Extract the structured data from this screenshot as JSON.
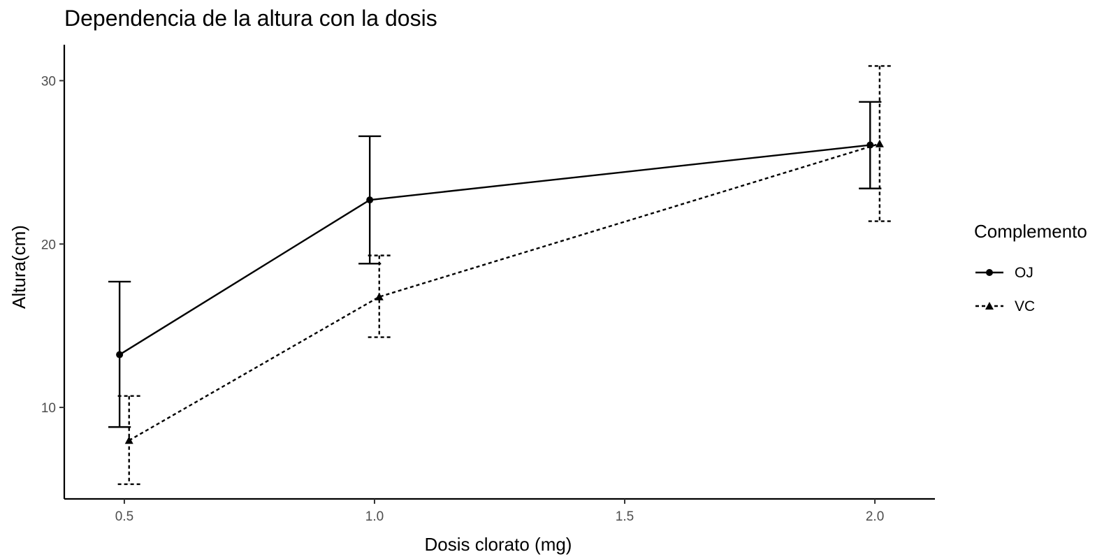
{
  "chart_data": {
    "type": "line",
    "title": "Dependencia de la altura con la dosis",
    "xlabel": "Dosis clorato (mg)",
    "ylabel": "Altura(cm)",
    "xlim": [
      0.38,
      2.12
    ],
    "ylim": [
      4.4,
      32.2
    ],
    "x_ticks": [
      0.5,
      1.0,
      1.5,
      2.0
    ],
    "x_tick_labels": [
      "0.5",
      "1.0",
      "1.5",
      "2.0"
    ],
    "y_ticks": [
      10,
      20,
      30
    ],
    "y_tick_labels": [
      "10",
      "20",
      "30"
    ],
    "grid": false,
    "legend_title": "Complemento",
    "legend_position": "right",
    "series": [
      {
        "name": "OJ",
        "marker": "circle",
        "linestyle": "solid",
        "x": [
          0.5,
          1.0,
          2.0
        ],
        "y": [
          13.23,
          22.7,
          26.06
        ],
        "error_low": [
          8.8,
          18.8,
          23.4
        ],
        "error_high": [
          17.7,
          26.6,
          28.7
        ]
      },
      {
        "name": "VC",
        "marker": "triangle",
        "linestyle": "dashed",
        "x": [
          0.5,
          1.0,
          2.0
        ],
        "y": [
          7.98,
          16.77,
          26.14
        ],
        "error_low": [
          5.3,
          14.3,
          21.4
        ],
        "error_high": [
          10.7,
          19.3,
          30.9
        ]
      }
    ]
  }
}
